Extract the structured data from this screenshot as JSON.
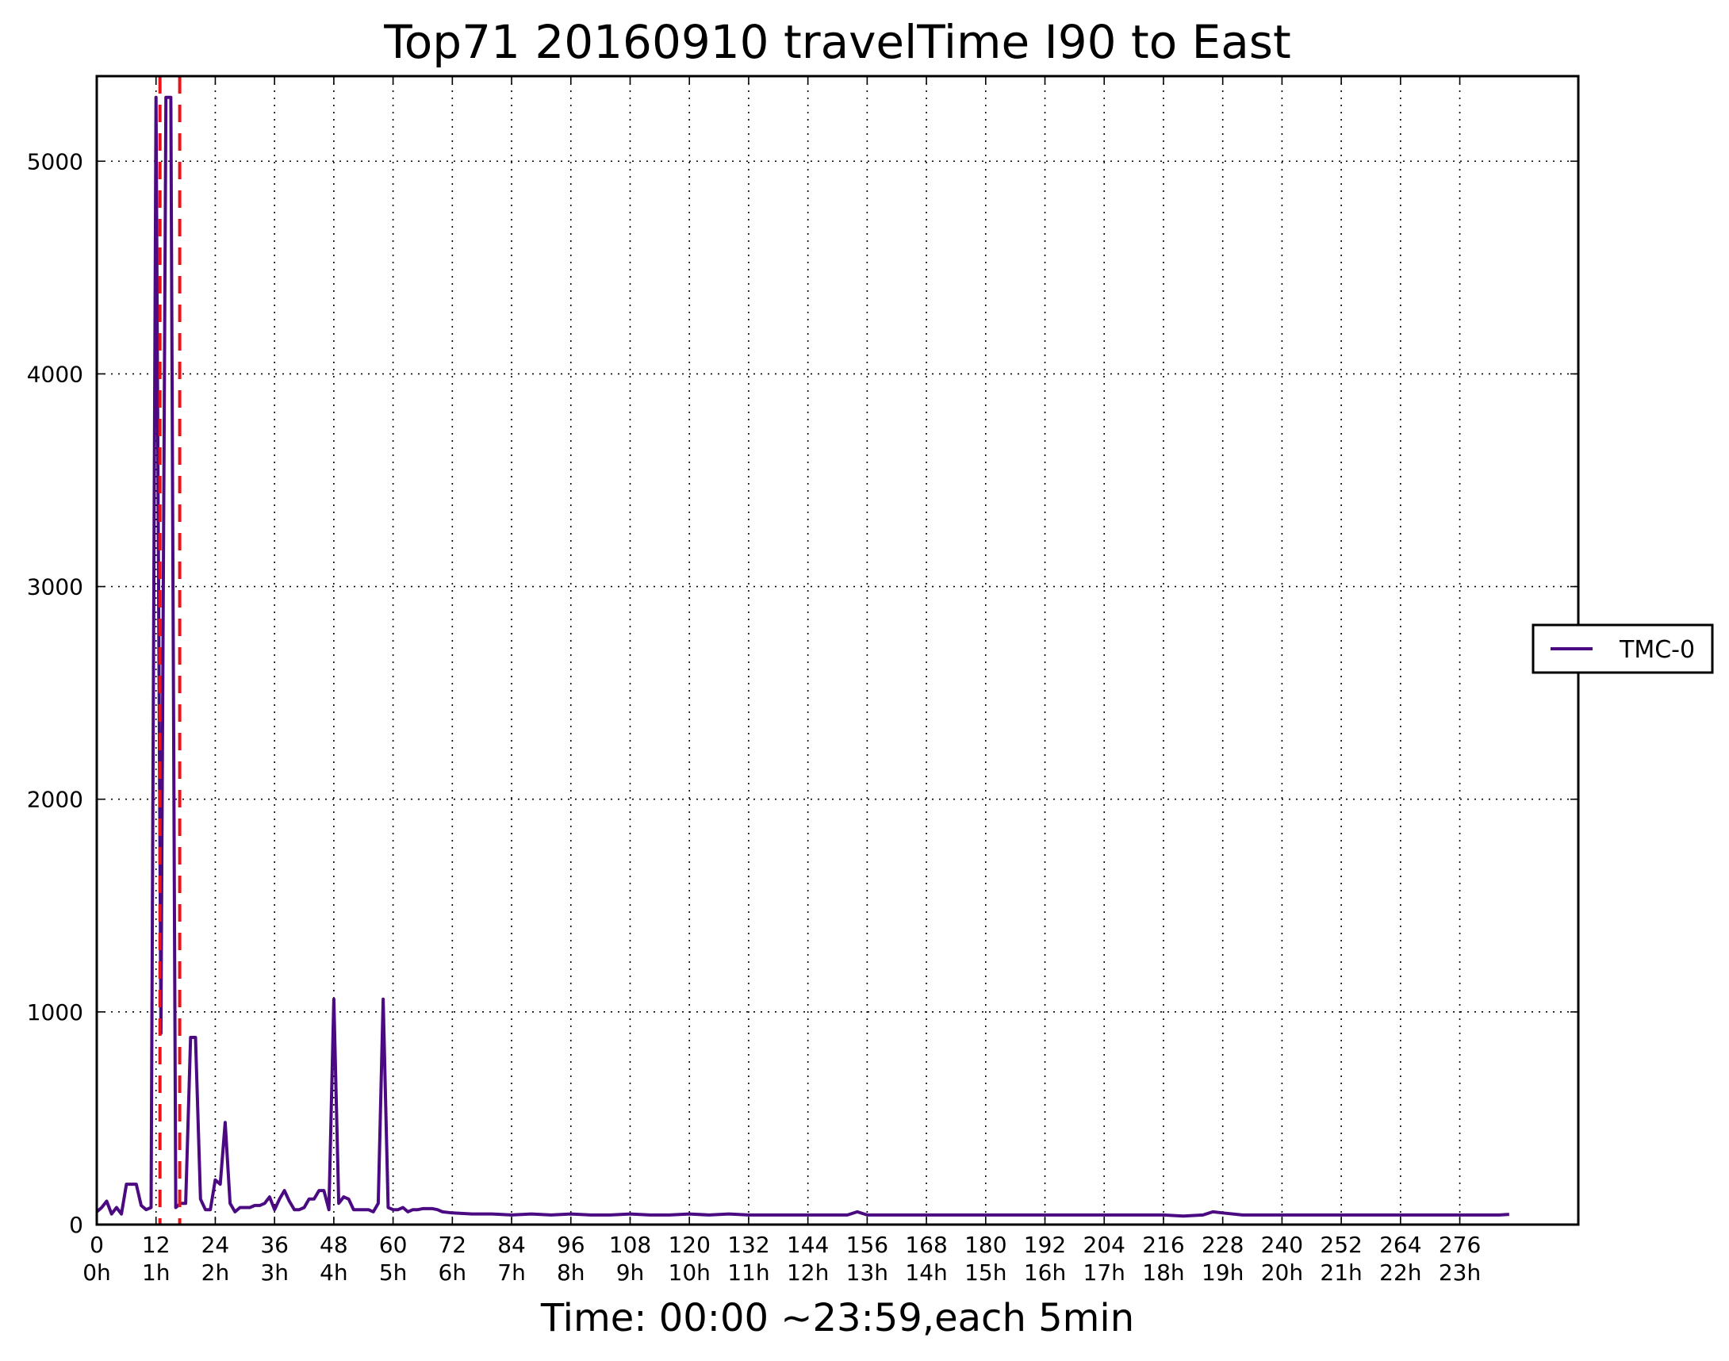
{
  "chart_data": {
    "type": "line",
    "title": "Top71 20160910 travelTime I90 to East",
    "xlabel": "Time: 00:00 ~23:59,each 5min",
    "ylabel": "",
    "xlim": [
      0,
      300
    ],
    "ylim": [
      0,
      5400
    ],
    "grid": true,
    "legend_position": "right",
    "x_ticks": [
      0,
      12,
      24,
      36,
      48,
      60,
      72,
      84,
      96,
      108,
      120,
      132,
      144,
      156,
      168,
      180,
      192,
      204,
      216,
      228,
      240,
      252,
      264,
      276
    ],
    "x_tick_labels": [
      "0",
      "12",
      "24",
      "36",
      "48",
      "60",
      "72",
      "84",
      "96",
      "108",
      "120",
      "132",
      "144",
      "156",
      "168",
      "180",
      "192",
      "204",
      "216",
      "228",
      "240",
      "252",
      "264",
      "276"
    ],
    "x_tick_sublabels": [
      "0h",
      "1h",
      "2h",
      "3h",
      "4h",
      "5h",
      "6h",
      "7h",
      "8h",
      "9h",
      "10h",
      "11h",
      "12h",
      "13h",
      "14h",
      "15h",
      "16h",
      "17h",
      "18h",
      "19h",
      "20h",
      "21h",
      "22h",
      "23h"
    ],
    "y_ticks": [
      0,
      1000,
      2000,
      3000,
      4000,
      5000
    ],
    "y_tick_labels": [
      "0",
      "1000",
      "2000",
      "3000",
      "4000",
      "5000"
    ],
    "vlines": [
      {
        "x": 12.8,
        "color": "#e8141a",
        "style": "dashed"
      },
      {
        "x": 16.8,
        "color": "#e8141a",
        "style": "dashed"
      }
    ],
    "series": [
      {
        "name": "TMC-0",
        "color": "#4b0a82",
        "x": [
          0,
          1,
          2,
          3,
          4,
          5,
          6,
          7,
          8,
          9,
          10,
          11,
          12,
          13,
          14,
          15,
          16,
          17,
          18,
          19,
          20,
          21,
          22,
          23,
          24,
          25,
          26,
          27,
          28,
          29,
          30,
          31,
          32,
          33,
          34,
          35,
          36,
          37,
          38,
          39,
          40,
          41,
          42,
          43,
          44,
          45,
          46,
          47,
          48,
          49,
          50,
          51,
          52,
          53,
          54,
          55,
          56,
          57,
          58,
          59,
          60,
          61,
          62,
          63,
          64,
          65,
          66,
          67,
          68,
          69,
          70,
          72,
          76,
          80,
          84,
          88,
          92,
          96,
          100,
          104,
          108,
          112,
          116,
          120,
          124,
          128,
          132,
          136,
          140,
          144,
          148,
          152,
          154,
          156,
          160,
          164,
          168,
          172,
          176,
          180,
          184,
          188,
          192,
          196,
          200,
          204,
          208,
          212,
          216,
          220,
          224,
          226,
          228,
          232,
          236,
          240,
          244,
          248,
          252,
          256,
          260,
          264,
          268,
          272,
          276,
          280,
          284,
          286
        ],
        "values": [
          60,
          80,
          110,
          50,
          80,
          50,
          190,
          190,
          190,
          90,
          70,
          80,
          5300,
          900,
          5300,
          5300,
          80,
          100,
          100,
          880,
          880,
          120,
          70,
          70,
          210,
          190,
          480,
          100,
          60,
          80,
          80,
          80,
          90,
          90,
          100,
          130,
          70,
          120,
          160,
          110,
          70,
          70,
          80,
          120,
          120,
          160,
          160,
          70,
          1060,
          100,
          130,
          120,
          70,
          70,
          70,
          70,
          60,
          100,
          1060,
          80,
          70,
          70,
          80,
          60,
          70,
          70,
          75,
          75,
          75,
          70,
          60,
          55,
          50,
          50,
          45,
          50,
          45,
          50,
          45,
          45,
          50,
          45,
          45,
          50,
          45,
          50,
          45,
          45,
          45,
          45,
          45,
          45,
          60,
          45,
          45,
          45,
          45,
          45,
          45,
          45,
          45,
          45,
          45,
          45,
          45,
          45,
          45,
          45,
          45,
          40,
          45,
          60,
          55,
          45,
          45,
          45,
          45,
          45,
          45,
          45,
          45,
          45,
          45,
          45,
          45,
          45,
          45,
          48
        ]
      }
    ]
  }
}
